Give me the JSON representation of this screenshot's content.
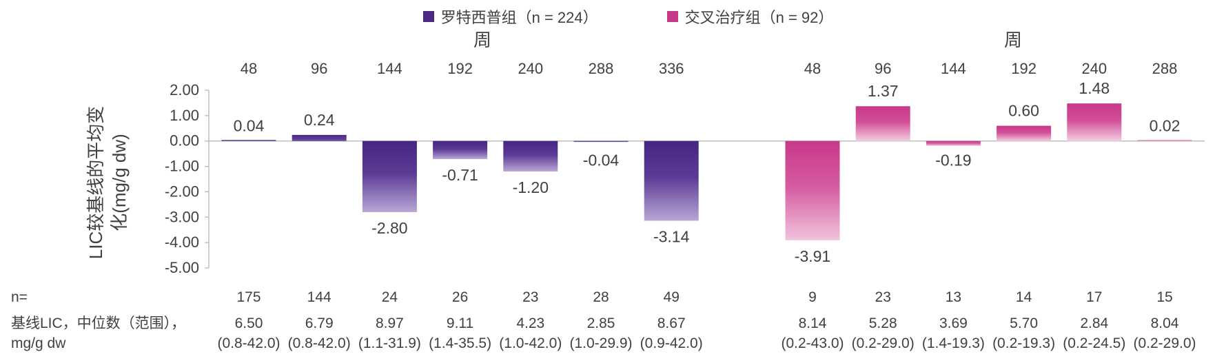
{
  "chart_data": {
    "type": "bar",
    "ylabel": "LIC较基线的平均变化(mg/g dw)",
    "ylim": [
      -5,
      2
    ],
    "yticks": [
      "2.00",
      "1.00",
      "0.00",
      "-1.00",
      "-2.00",
      "-3.00",
      "-4.00",
      "-5.00"
    ],
    "xlabel_top": "周",
    "series": [
      {
        "name": "罗特西普组（n = 224）",
        "color": "#4b2a86",
        "categories": [
          "48",
          "96",
          "144",
          "192",
          "240",
          "288",
          "336"
        ],
        "values": [
          0.04,
          0.24,
          -2.8,
          -0.71,
          -1.2,
          -0.04,
          -3.14
        ],
        "value_labels": [
          "0.04",
          "0.24",
          "-2.80",
          "-0.71",
          "-1.20",
          "-0.04",
          "-3.14"
        ],
        "n": [
          "175",
          "144",
          "24",
          "26",
          "23",
          "28",
          "49"
        ],
        "baseline_median": [
          "6.50",
          "6.79",
          "8.97",
          "9.11",
          "4.23",
          "2.85",
          "8.67"
        ],
        "baseline_range": [
          "(0.8-42.0)",
          "(0.8-42.0)",
          "(1.1-31.9)",
          "(1.4-35.5)",
          "(1.0-42.0)",
          "(1.0-29.9)",
          "(0.9-42.0)"
        ]
      },
      {
        "name": "交叉治疗组（n = 92）",
        "color": "#c8388a",
        "categories": [
          "48",
          "96",
          "144",
          "192",
          "240",
          "288"
        ],
        "values": [
          -3.91,
          1.37,
          -0.19,
          0.6,
          1.48,
          0.02
        ],
        "value_labels": [
          "-3.91",
          "1.37",
          "-0.19",
          "0.60",
          "1.48",
          "0.02"
        ],
        "n": [
          "9",
          "23",
          "13",
          "14",
          "17",
          "15"
        ],
        "baseline_median": [
          "8.14",
          "5.28",
          "3.69",
          "5.70",
          "2.84",
          "8.04"
        ],
        "baseline_range": [
          "(0.2-43.0)",
          "(0.2-29.0)",
          "(1.4-19.3)",
          "(0.2-19.3)",
          "(0.2-24.5)",
          "(0.2-29.0)"
        ]
      }
    ],
    "row_labels": {
      "n": "n=",
      "baseline_line1": "基线LIC，中位数（范围），",
      "baseline_line2": "mg/g dw"
    }
  }
}
